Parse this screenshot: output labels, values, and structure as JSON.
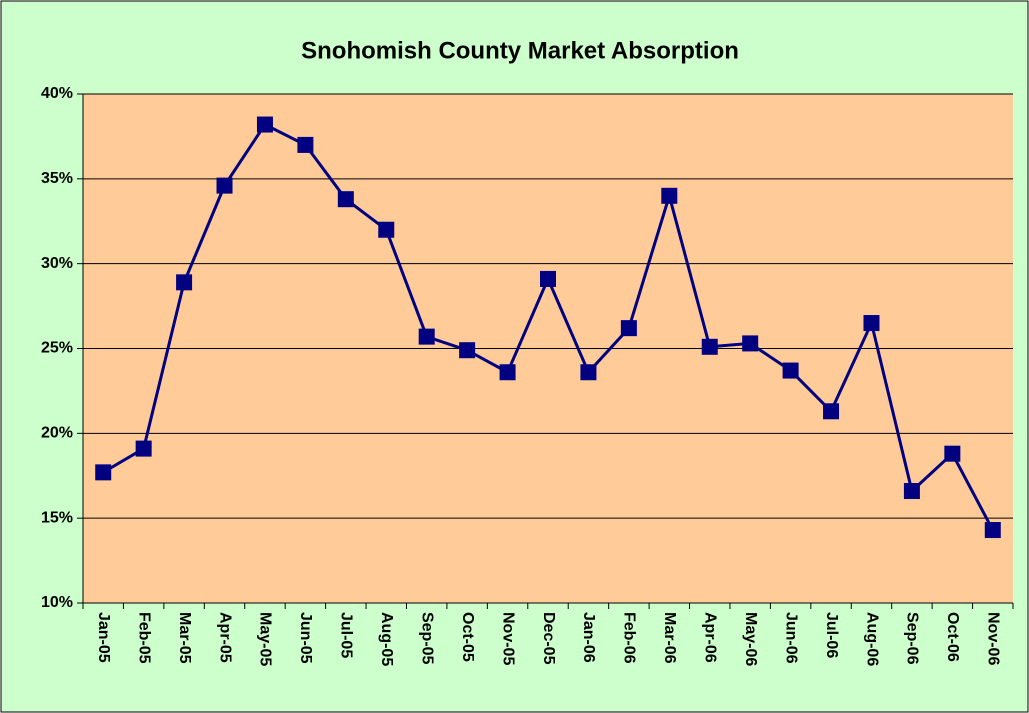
{
  "chart_data": {
    "type": "line",
    "title": "Snohomish County Market Absorption",
    "categories": [
      "Jan-05",
      "Feb-05",
      "Mar-05",
      "Apr-05",
      "May-05",
      "Jun-05",
      "Jul-05",
      "Aug-05",
      "Sep-05",
      "Oct-05",
      "Nov-05",
      "Dec-05",
      "Jan-06",
      "Feb-06",
      "Mar-06",
      "Apr-06",
      "May-06",
      "Jun-06",
      "Jul-06",
      "Aug-06",
      "Sep-06",
      "Oct-06",
      "Nov-06"
    ],
    "values": [
      17.7,
      19.1,
      28.9,
      34.6,
      38.2,
      37.0,
      33.8,
      32.0,
      25.7,
      24.9,
      23.6,
      29.1,
      23.6,
      26.2,
      34.0,
      25.1,
      25.3,
      23.7,
      21.3,
      26.5,
      16.6,
      18.8,
      14.3
    ],
    "color": "#000080",
    "ylim": [
      10,
      40
    ],
    "yticks": [
      {
        "value": 10,
        "label": "10%"
      },
      {
        "value": 15,
        "label": "15%"
      },
      {
        "value": 20,
        "label": "20%"
      },
      {
        "value": 25,
        "label": "25%"
      },
      {
        "value": 30,
        "label": "30%"
      },
      {
        "value": 35,
        "label": "35%"
      },
      {
        "value": 40,
        "label": "40%"
      }
    ],
    "grid": true
  }
}
